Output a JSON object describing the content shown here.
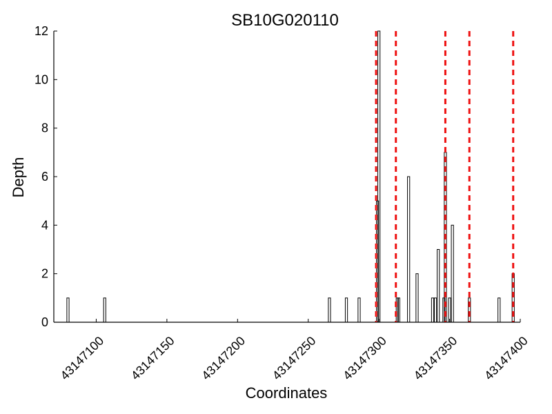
{
  "chart_data": {
    "type": "bar",
    "title": "SB10G020110",
    "xlabel": "Coordinates",
    "ylabel": "Depth",
    "xlim": [
      43147070,
      43147400
    ],
    "ylim": [
      0,
      12
    ],
    "xticks": [
      43147100,
      43147150,
      43147200,
      43147250,
      43147300,
      43147350,
      43147400
    ],
    "yticks": [
      0,
      2,
      4,
      6,
      8,
      10,
      12
    ],
    "grid": false,
    "x": [
      43147080,
      43147106,
      43147265,
      43147277,
      43147286,
      43147299,
      43147300,
      43147313,
      43147314,
      43147321,
      43147327,
      43147338,
      43147340,
      43147342,
      43147346,
      43147347,
      43147350,
      43147352,
      43147364,
      43147385,
      43147395
    ],
    "values": [
      1,
      1,
      1,
      1,
      1,
      5,
      12,
      1,
      1,
      6,
      2,
      1,
      1,
      3,
      1,
      7,
      1,
      4,
      1,
      1,
      2
    ],
    "markers": [
      43147298,
      43147312,
      43147347,
      43147364,
      43147395
    ],
    "colors": {
      "bars": "#000000",
      "markers": "#ee1111"
    }
  }
}
